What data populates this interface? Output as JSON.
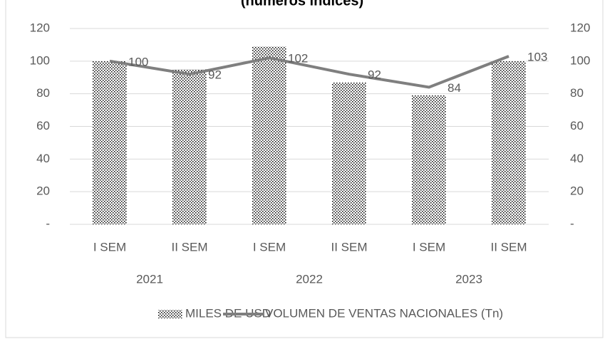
{
  "chart_data": {
    "type": "bar",
    "title": "(números índices)",
    "categories": [
      "I SEM",
      "II SEM",
      "I SEM",
      "II SEM",
      "I SEM",
      "II SEM"
    ],
    "category_groups": [
      "2021",
      "2022",
      "2023"
    ],
    "series": [
      {
        "name": "MILES DE USD",
        "type": "bar",
        "color": "#000000",
        "values": [
          100,
          95,
          109,
          87,
          79,
          100
        ]
      },
      {
        "name": "VOLUMEN DE VENTAS NACIONALES (Tn)",
        "type": "line",
        "axis": "y2",
        "color": "#7f7f7f",
        "values": [
          100,
          92,
          102,
          92,
          84,
          103
        ]
      }
    ],
    "ylim": [
      0,
      120
    ],
    "yticks": [
      {
        "value": 0,
        "label": "-"
      },
      20,
      40,
      60,
      80,
      100,
      120
    ],
    "y2lim": [
      0,
      120
    ],
    "y2ticks": [
      {
        "value": 0,
        "label": "-"
      },
      20,
      40,
      60,
      80,
      100,
      120
    ],
    "grid": true,
    "legend": "bottom"
  }
}
